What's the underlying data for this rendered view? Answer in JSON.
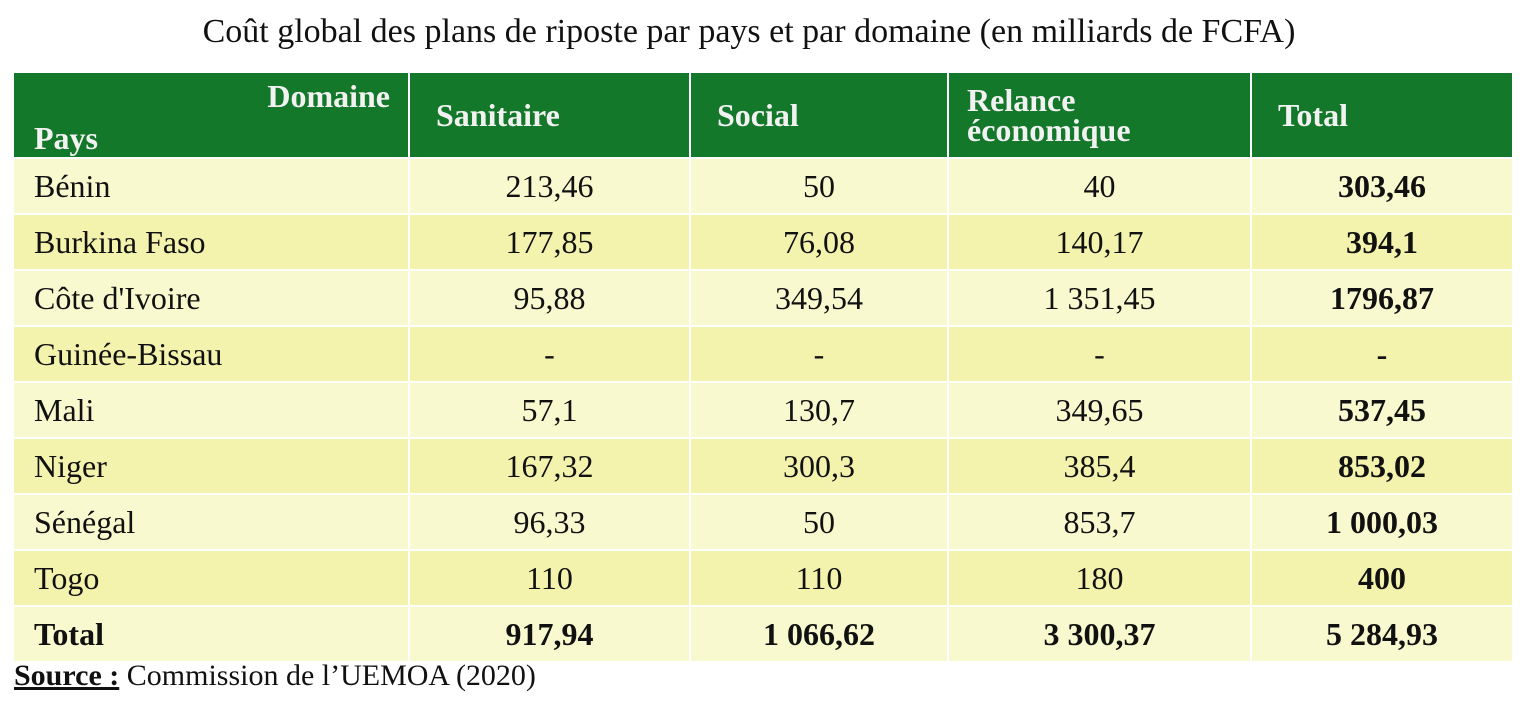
{
  "title": "Coût global des plans de riposte par pays et par domaine (en milliards de FCFA)",
  "chart_data": {
    "type": "table",
    "title": "Coût global des plans de riposte par pays et par domaine (en milliards de FCFA)",
    "corner_top": "Domaine",
    "corner_bottom": "Pays",
    "columns": [
      "Sanitaire",
      "Social",
      "Relance économique",
      "Total"
    ],
    "rows": [
      {
        "pays": "Bénin",
        "values": [
          "213,46",
          "50",
          "40",
          "303,46"
        ]
      },
      {
        "pays": "Burkina Faso",
        "values": [
          "177,85",
          "76,08",
          "140,17",
          "394,1"
        ]
      },
      {
        "pays": "Côte d'Ivoire",
        "values": [
          "95,88",
          "349,54",
          "1 351,45",
          "1796,87"
        ]
      },
      {
        "pays": "Guinée-Bissau",
        "values": [
          "-",
          "-",
          "-",
          "-"
        ]
      },
      {
        "pays": "Mali",
        "values": [
          "57,1",
          "130,7",
          "349,65",
          "537,45"
        ]
      },
      {
        "pays": "Niger",
        "values": [
          "167,32",
          "300,3",
          "385,4",
          "853,02"
        ]
      },
      {
        "pays": "Sénégal",
        "values": [
          "96,33",
          "50",
          "853,7",
          "1 000,03"
        ]
      },
      {
        "pays": "Togo",
        "values": [
          "110",
          "110",
          "180",
          "400"
        ]
      }
    ],
    "total_row": {
      "pays": "Total",
      "values": [
        "917,94",
        "1 066,62",
        "3 300,37",
        "5 284,93"
      ]
    }
  },
  "source": {
    "label": "Source :",
    "text": "Commission de l’UEMOA (2020)"
  },
  "colors": {
    "header_bg": "#14782a",
    "row_light": "#f9f9cf",
    "row_dark": "#f3f3ae"
  }
}
